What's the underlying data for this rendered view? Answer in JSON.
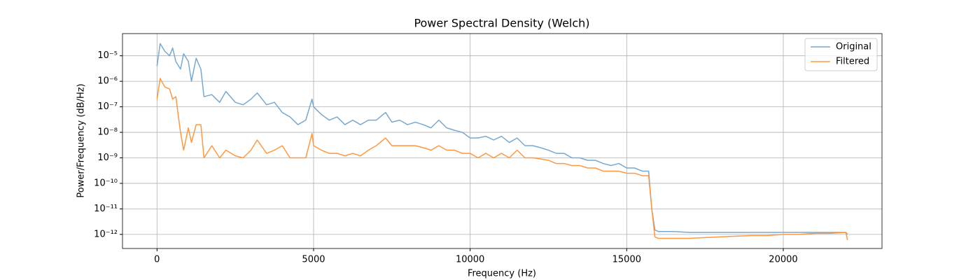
{
  "chart_data": {
    "type": "line",
    "title": "Power Spectral Density (Welch)",
    "x_label": "Frequency (Hz)",
    "y_label": "Power/Frequency (dB/Hz)",
    "x": [
      0,
      100,
      250,
      400,
      500,
      600,
      750,
      850,
      1000,
      1100,
      1250,
      1400,
      1500,
      1750,
      2000,
      2200,
      2500,
      2750,
      3000,
      3200,
      3500,
      3750,
      4000,
      4250,
      4500,
      4750,
      4950,
      5000,
      5250,
      5500,
      5750,
      6000,
      6250,
      6500,
      6750,
      7000,
      7300,
      7500,
      7750,
      8000,
      8250,
      8500,
      8750,
      9000,
      9250,
      9500,
      9750,
      10000,
      10250,
      10500,
      10750,
      11000,
      11250,
      11500,
      11750,
      12000,
      12250,
      12500,
      12750,
      13000,
      13250,
      13500,
      13750,
      14000,
      14250,
      14500,
      14750,
      15000,
      15250,
      15500,
      15700,
      15800,
      15900,
      16000,
      16500,
      17000,
      17500,
      18000,
      18500,
      19000,
      19500,
      20000,
      20500,
      21000,
      21500,
      22000,
      22050
    ],
    "series": [
      {
        "name": "Original",
        "color": "#76a9d2",
        "values": [
          4e-06,
          3e-05,
          1.5e-05,
          1e-05,
          2e-05,
          6e-06,
          3e-06,
          1.2e-05,
          6e-06,
          1e-06,
          8e-06,
          3e-06,
          2.5e-07,
          3e-07,
          1.5e-07,
          4e-07,
          1.5e-07,
          1.2e-07,
          2e-07,
          3.5e-07,
          1.2e-07,
          1.5e-07,
          6e-08,
          4e-08,
          2e-08,
          3e-08,
          2e-07,
          1e-07,
          5e-08,
          3e-08,
          4e-08,
          2e-08,
          3e-08,
          2e-08,
          3e-08,
          3e-08,
          6e-08,
          2.5e-08,
          3e-08,
          2e-08,
          2.5e-08,
          2e-08,
          1.5e-08,
          3e-08,
          1.5e-08,
          1.2e-08,
          1e-08,
          6e-09,
          6e-09,
          7e-09,
          5e-09,
          7e-09,
          4e-09,
          6e-09,
          3e-09,
          3e-09,
          2.5e-09,
          2e-09,
          1.5e-09,
          1.5e-09,
          1e-09,
          1e-09,
          8e-10,
          8e-10,
          6e-10,
          5e-10,
          6e-10,
          4e-10,
          4e-10,
          3e-10,
          3e-10,
          1e-11,
          1.5e-12,
          1.3e-12,
          1.3e-12,
          1.2e-12,
          1.2e-12,
          1.2e-12,
          1.2e-12,
          1.2e-12,
          1.2e-12,
          1.2e-12,
          1.2e-12,
          1.2e-12,
          1.2e-12,
          1.2e-12,
          1e-12
        ]
      },
      {
        "name": "Filtered",
        "color": "#ff983e",
        "values": [
          2e-07,
          1.3e-06,
          6e-07,
          5e-07,
          2e-07,
          2.5e-07,
          1e-08,
          2e-09,
          1.5e-08,
          4e-09,
          2e-08,
          2e-08,
          1e-09,
          3e-09,
          1e-09,
          2e-09,
          1.2e-09,
          1e-09,
          2e-09,
          5e-09,
          1.5e-09,
          2e-09,
          3e-09,
          1e-09,
          1e-09,
          1e-09,
          9e-09,
          3e-09,
          2e-09,
          1.5e-09,
          1.5e-09,
          1.2e-09,
          1.5e-09,
          1.2e-09,
          2e-09,
          3e-09,
          6e-09,
          3e-09,
          3e-09,
          3e-09,
          3e-09,
          2.5e-09,
          2e-09,
          3e-09,
          2e-09,
          2e-09,
          1.5e-09,
          1.5e-09,
          1e-09,
          1.5e-09,
          1e-09,
          1.5e-09,
          1e-09,
          2e-09,
          1e-09,
          1e-09,
          9e-10,
          8e-10,
          6e-10,
          6e-10,
          5e-10,
          5e-10,
          4e-10,
          4e-10,
          3e-10,
          3e-10,
          3e-10,
          2.5e-10,
          2.5e-10,
          2e-10,
          2e-10,
          1e-11,
          8e-13,
          7e-13,
          7e-13,
          7e-13,
          7.5e-13,
          8e-13,
          8.5e-13,
          9e-13,
          9e-13,
          1e-12,
          1e-12,
          1.1e-12,
          1.1e-12,
          1.2e-12,
          6e-13
        ]
      }
    ],
    "xlim": [
      -1102.5,
      23152.5
    ],
    "xticks": [
      0,
      5000,
      10000,
      15000,
      20000
    ],
    "ylim": [
      2.8e-13,
      7.4e-05
    ],
    "log_y": true,
    "yticks": [
      {
        "value": 1e-12,
        "label": "10⁻¹²"
      },
      {
        "value": 1e-11,
        "label": "10⁻¹¹"
      },
      {
        "value": 1e-10,
        "label": "10⁻¹⁰"
      },
      {
        "value": 1e-09,
        "label": "10⁻⁹"
      },
      {
        "value": 1e-08,
        "label": "10⁻⁸"
      },
      {
        "value": 1e-07,
        "label": "10⁻⁷"
      },
      {
        "value": 1e-06,
        "label": "10⁻⁶"
      },
      {
        "value": 1e-05,
        "label": "10⁻⁵"
      }
    ],
    "grid": true,
    "legend": "upper-right"
  }
}
